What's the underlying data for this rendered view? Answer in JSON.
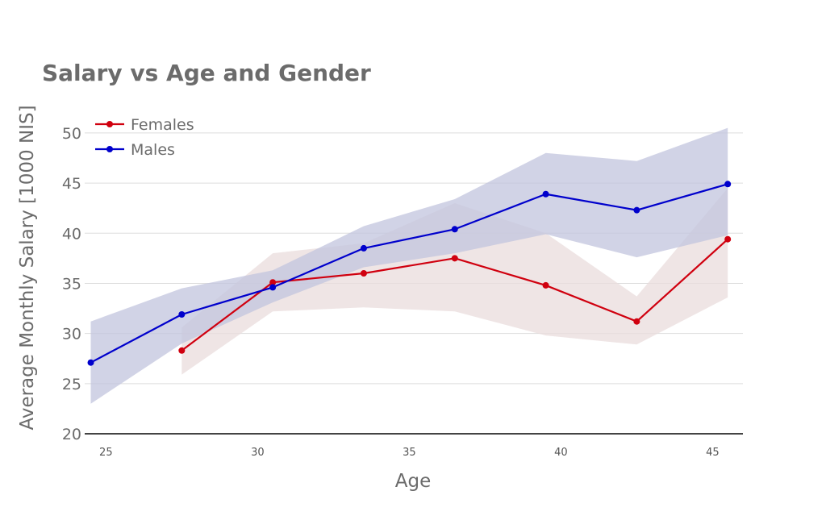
{
  "chart_data": {
    "type": "line",
    "title": "Salary vs Age and Gender",
    "xlabel": "Age",
    "ylabel": "Average Monthly Salary [1000 NIS]",
    "xlim": [
      24.3,
      46
    ],
    "ylim": [
      20,
      52
    ],
    "x_ticks": [
      25,
      30,
      35,
      40,
      45
    ],
    "y_ticks": [
      20,
      25,
      30,
      35,
      40,
      45,
      50
    ],
    "grid": true,
    "legend_position": "top-left",
    "series": [
      {
        "name": "Females",
        "color": "#d0000f",
        "band_color": "#e9dcdc",
        "x": [
          27.5,
          30.5,
          33.5,
          36.5,
          39.5,
          42.5,
          45.5
        ],
        "y": [
          28.3,
          35.1,
          36.0,
          37.5,
          34.8,
          31.2,
          39.4
        ],
        "upper": [
          30.6,
          38.0,
          39.0,
          43.0,
          40.0,
          33.7,
          44.5
        ],
        "lower": [
          25.9,
          32.2,
          32.6,
          32.2,
          29.8,
          28.9,
          33.6
        ]
      },
      {
        "name": "Males",
        "color": "#0000cc",
        "band_color": "#c2c4dd",
        "x": [
          24.5,
          27.5,
          30.5,
          33.5,
          36.5,
          39.5,
          42.5,
          45.5
        ],
        "y": [
          27.1,
          31.9,
          34.6,
          38.5,
          40.4,
          43.9,
          42.3,
          44.9
        ],
        "upper": [
          31.2,
          34.5,
          36.3,
          40.7,
          43.4,
          48.0,
          47.2,
          50.5
        ],
        "lower": [
          23.0,
          29.0,
          33.1,
          36.6,
          38.0,
          39.9,
          37.6,
          39.8
        ]
      }
    ]
  }
}
